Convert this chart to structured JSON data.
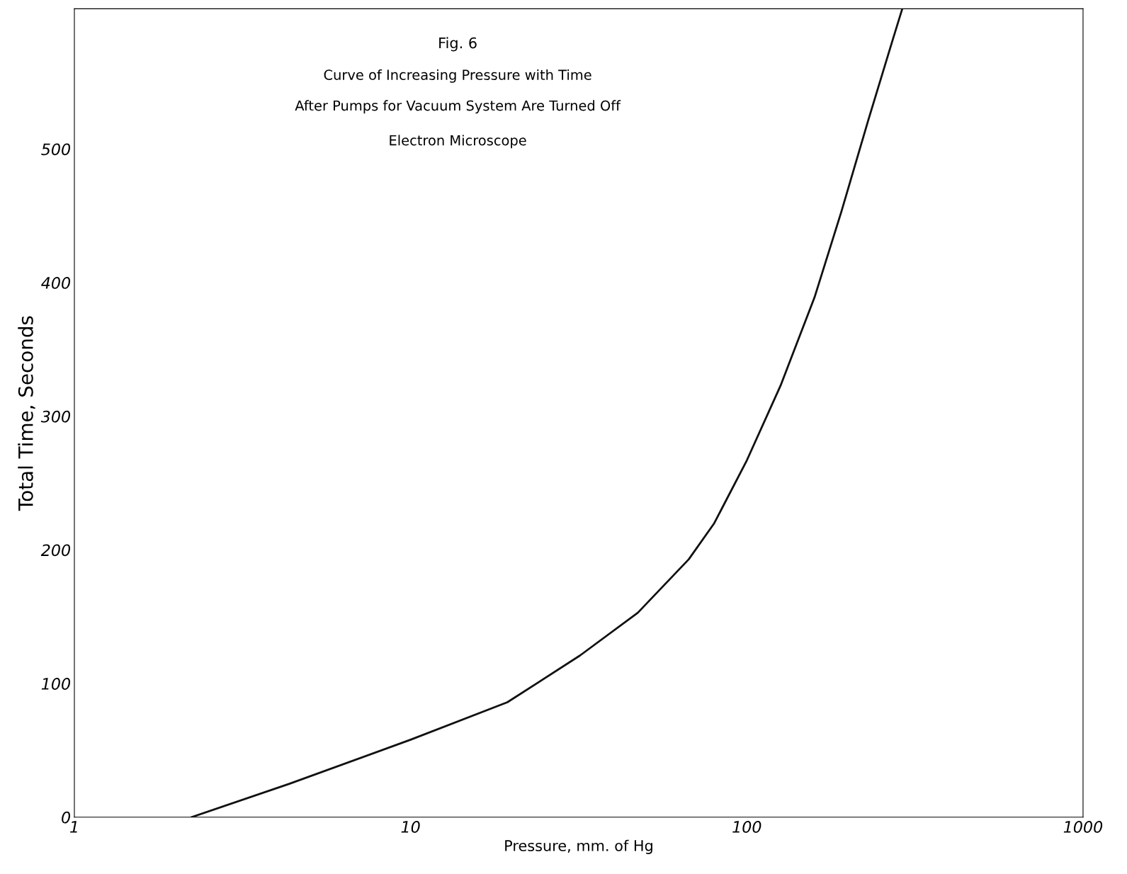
{
  "chart_data": {
    "type": "line",
    "title": "Fig. 6",
    "subtitle": [
      "Curve of Increasing Pressure with Time",
      "After Pumps for Vacuum System Are Turned Off"
    ],
    "annotations": [
      "Electron Microscope"
    ],
    "xlabel": "Pressure, mm. of Hg",
    "ylabel": "Total Time, Seconds",
    "log": "x",
    "xlim": [
      1,
      1000
    ],
    "ylim": [
      0,
      605
    ],
    "xticks": [
      1,
      10,
      100,
      1000
    ],
    "yticks": [
      0,
      100,
      200,
      300,
      400,
      500
    ],
    "grid": false,
    "legend": false,
    "marker": "none",
    "line_style": "solid",
    "series": [
      {
        "color": "#111111",
        "x": [
          2.23,
          4.36,
          10,
          19.4,
          31.9,
          47.4,
          67.2,
          80,
          100,
          126,
          159,
          191,
          230,
          271,
          290
        ],
        "values": [
          0,
          25,
          58,
          86,
          121,
          153,
          193,
          220,
          267,
          323,
          389,
          453,
          522,
          581,
          605
        ]
      }
    ]
  }
}
